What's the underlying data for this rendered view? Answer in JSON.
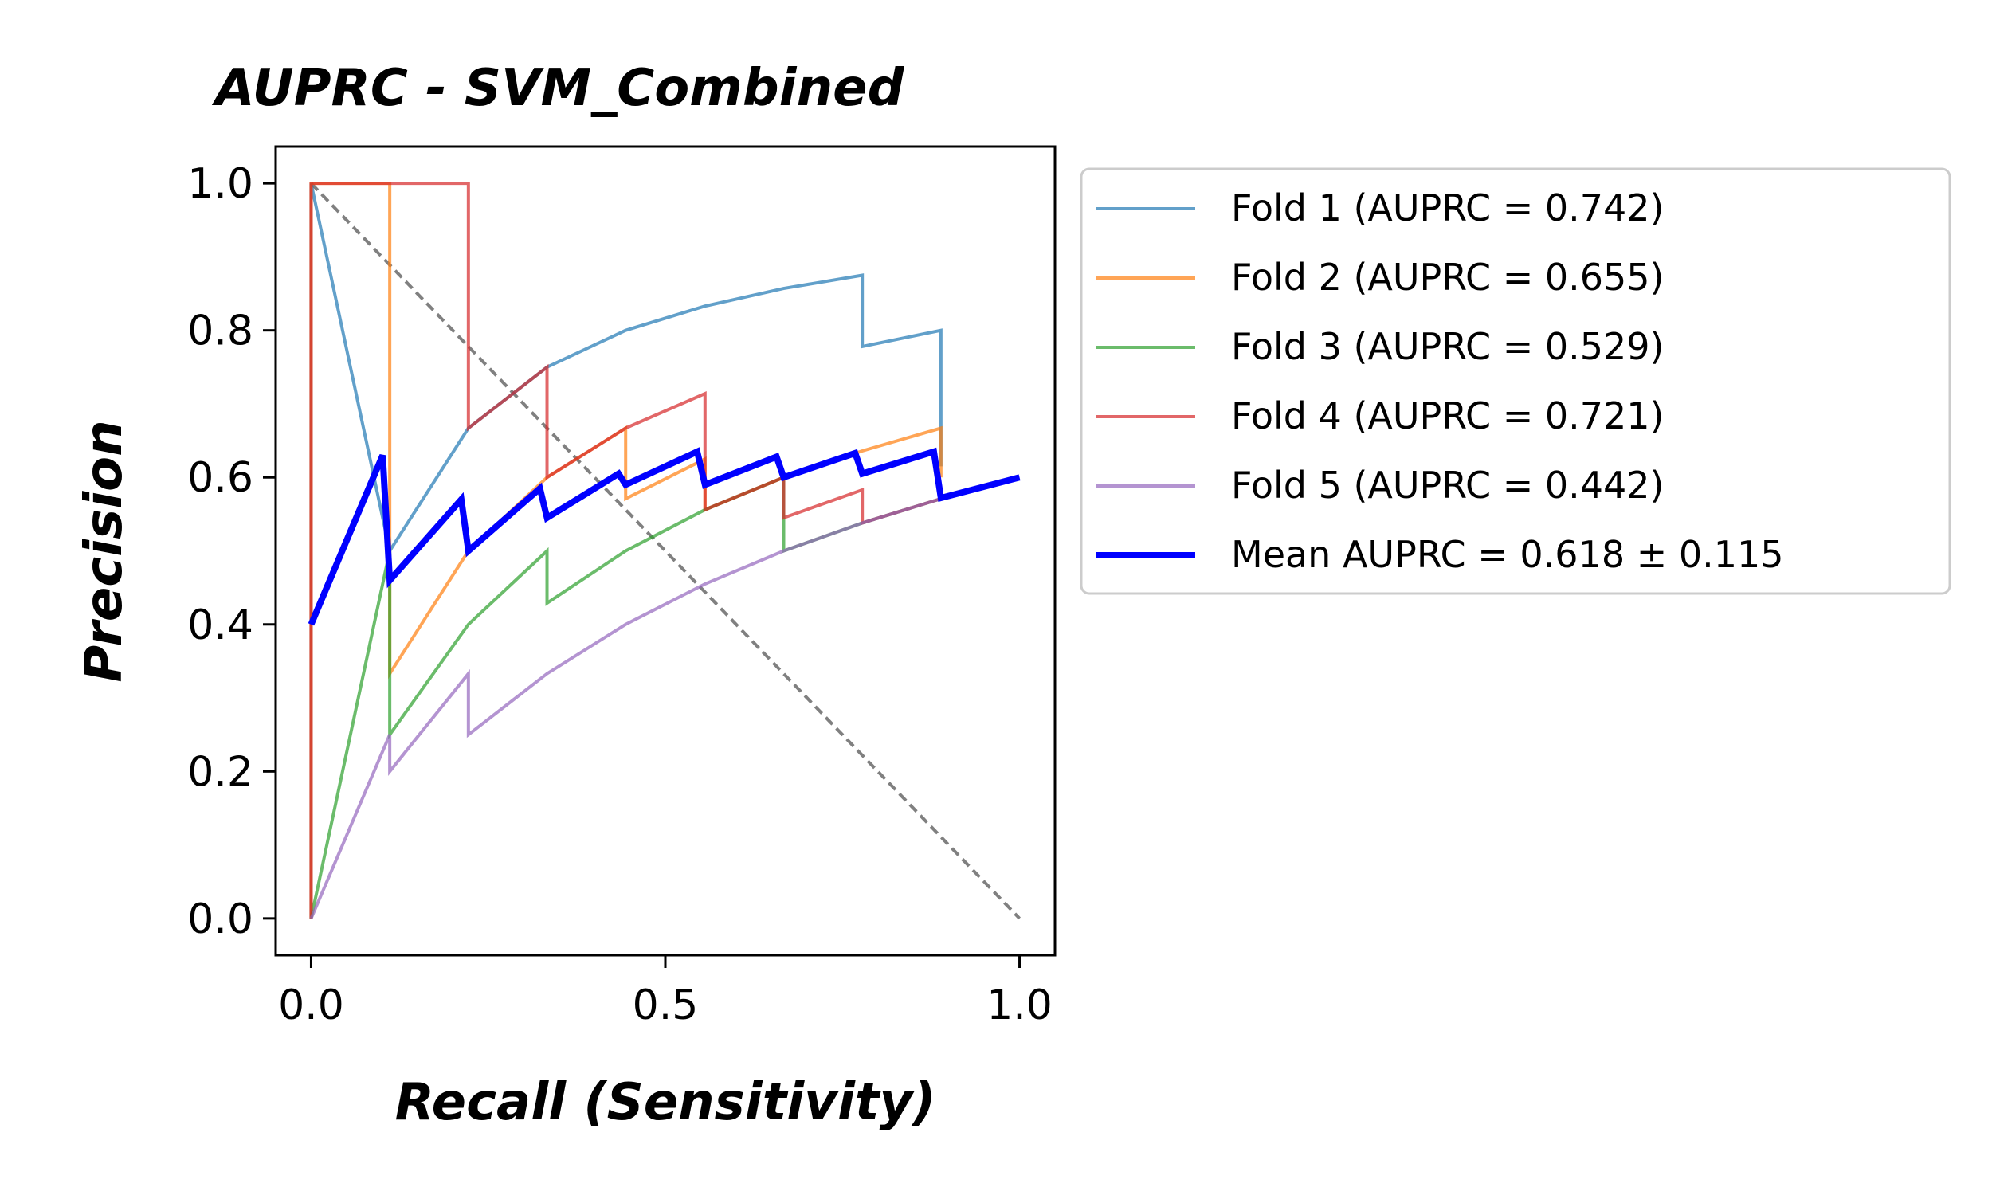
{
  "chart_data": {
    "type": "line",
    "title": "AUPRC - SVM_Combined",
    "xlabel": "Recall (Sensitivity)",
    "ylabel": "Precision",
    "xlim": [
      -0.05,
      1.05
    ],
    "ylim": [
      -0.05,
      1.05
    ],
    "xticks": [
      0.0,
      0.5,
      1.0
    ],
    "xtick_labels": [
      "0.0",
      "0.5",
      "1.0"
    ],
    "yticks": [
      0.0,
      0.2,
      0.4,
      0.6,
      0.8,
      1.0
    ],
    "ytick_labels": [
      "0.0",
      "0.2",
      "0.4",
      "0.6",
      "0.8",
      "1.0"
    ],
    "grid": false,
    "legend_position": "outside right",
    "reference_line": {
      "x": [
        0,
        1
      ],
      "y": [
        1,
        0
      ],
      "color": "#808080",
      "style": "dashed"
    },
    "series": [
      {
        "name": "Fold 1 (AUPRC = 0.742)",
        "color": "#1f77b4",
        "x": [
          0,
          0,
          0.111,
          0.222,
          0.333,
          0.444,
          0.556,
          0.667,
          0.778,
          0.778,
          0.889,
          0.889
        ],
        "y": [
          0,
          1,
          0.5,
          0.667,
          0.75,
          0.8,
          0.833,
          0.857,
          0.875,
          0.778,
          0.8,
          0.615
        ]
      },
      {
        "name": "Fold 2 (AUPRC = 0.655)",
        "color": "#ff7f0e",
        "x": [
          0,
          0,
          0.111,
          0.111,
          0.222,
          0.333,
          0.444,
          0.444,
          0.556,
          0.556,
          0.667,
          0.778,
          0.889,
          0.889
        ],
        "y": [
          0,
          1,
          1,
          0.333,
          0.5,
          0.6,
          0.667,
          0.571,
          0.625,
          0.556,
          0.6,
          0.636,
          0.667,
          0.6
        ]
      },
      {
        "name": "Fold 3 (AUPRC = 0.529)",
        "color": "#2ca02c",
        "x": [
          0,
          0.111,
          0.111,
          0.222,
          0.333,
          0.333,
          0.444,
          0.556,
          0.667,
          0.667,
          0.778,
          0.889
        ],
        "y": [
          0,
          0.5,
          0.25,
          0.4,
          0.5,
          0.429,
          0.5,
          0.556,
          0.6,
          0.5,
          0.538,
          0.571
        ]
      },
      {
        "name": "Fold 4 (AUPRC = 0.721)",
        "color": "#d62728",
        "x": [
          0,
          0,
          0.222,
          0.222,
          0.333,
          0.333,
          0.444,
          0.556,
          0.556,
          0.667,
          0.667,
          0.778,
          0.778,
          0.889
        ],
        "y": [
          0,
          1,
          1,
          0.667,
          0.75,
          0.6,
          0.667,
          0.714,
          0.556,
          0.6,
          0.545,
          0.583,
          0.538,
          0.571
        ]
      },
      {
        "name": "Fold 5 (AUPRC = 0.442)",
        "color": "#9467bd",
        "x": [
          0,
          0.111,
          0.111,
          0.222,
          0.222,
          0.333,
          0.444,
          0.556,
          0.667,
          0.778,
          0.889
        ],
        "y": [
          0,
          0.25,
          0.2,
          0.333,
          0.25,
          0.333,
          0.4,
          0.455,
          0.5,
          0.538,
          0.571
        ]
      },
      {
        "name": "Mean AUPRC = 0.618 ± 0.115",
        "color": "#0000ff",
        "x": [
          0,
          0.101,
          0.111,
          0.212,
          0.222,
          0.323,
          0.333,
          0.434,
          0.444,
          0.545,
          0.556,
          0.657,
          0.667,
          0.768,
          0.778,
          0.879,
          0.889,
          1.0
        ],
        "y": [
          0.4,
          0.63,
          0.46,
          0.57,
          0.5,
          0.585,
          0.545,
          0.605,
          0.59,
          0.635,
          0.59,
          0.628,
          0.6,
          0.633,
          0.605,
          0.635,
          0.572,
          0.6
        ]
      }
    ]
  }
}
